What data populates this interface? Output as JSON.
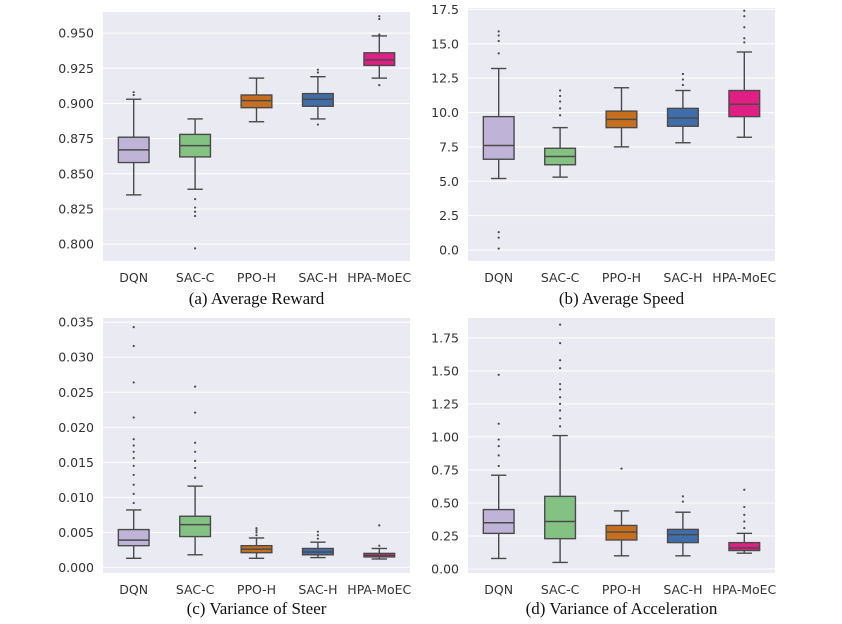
{
  "colors": {
    "background": "#eaeaf2",
    "grid": "#ffffff",
    "whisker": "#4a4a4a",
    "DQN": "#bfb3d8",
    "SAC-C": "#84c283",
    "PPO-H": "#c86f1e",
    "SAC-H": "#3f6eab",
    "HPA-MoEC": "#e11e84"
  },
  "chart_data": [
    {
      "type": "box",
      "title": "(a) Average Reward",
      "categories": [
        "DQN",
        "SAC-C",
        "PPO-H",
        "SAC-H",
        "HPA-MoEC"
      ],
      "ylim": [
        0.788,
        0.965
      ],
      "yticks": [
        0.8,
        0.825,
        0.85,
        0.875,
        0.9,
        0.925,
        0.95
      ],
      "ytick_labels": [
        "0.800",
        "0.825",
        "0.850",
        "0.875",
        "0.900",
        "0.925",
        "0.950"
      ],
      "boxes": [
        {
          "whislo": 0.835,
          "q1": 0.858,
          "med": 0.867,
          "q3": 0.876,
          "whishi": 0.903,
          "fliers": [
            0.906,
            0.908
          ]
        },
        {
          "whislo": 0.839,
          "q1": 0.862,
          "med": 0.87,
          "q3": 0.878,
          "whishi": 0.889,
          "fliers": [
            0.832,
            0.826,
            0.823,
            0.82,
            0.797
          ]
        },
        {
          "whislo": 0.887,
          "q1": 0.897,
          "med": 0.902,
          "q3": 0.906,
          "whishi": 0.918,
          "fliers": []
        },
        {
          "whislo": 0.889,
          "q1": 0.898,
          "med": 0.903,
          "q3": 0.907,
          "whishi": 0.919,
          "fliers": [
            0.885,
            0.922,
            0.924
          ]
        },
        {
          "whislo": 0.918,
          "q1": 0.927,
          "med": 0.931,
          "q3": 0.936,
          "whishi": 0.948,
          "fliers": [
            0.913,
            0.949,
            0.96,
            0.962
          ]
        }
      ]
    },
    {
      "type": "box",
      "title": "(b) Average Speed",
      "categories": [
        "DQN",
        "SAC-C",
        "PPO-H",
        "SAC-H",
        "HPA-MoEC"
      ],
      "ylim": [
        -0.8,
        17.6
      ],
      "yticks": [
        0,
        2.5,
        5,
        7.5,
        10,
        12.5,
        15,
        17.5
      ],
      "ytick_labels": [
        "0.0",
        "2.5",
        "5.0",
        "7.5",
        "10.0",
        "12.5",
        "15.0",
        "17.5"
      ],
      "boxes": [
        {
          "whislo": 5.2,
          "q1": 6.6,
          "med": 7.6,
          "q3": 9.7,
          "whishi": 13.2,
          "fliers": [
            0.1,
            0.9,
            1.3,
            14.3,
            15.2,
            15.6,
            15.9
          ]
        },
        {
          "whislo": 5.3,
          "q1": 6.2,
          "med": 6.8,
          "q3": 7.4,
          "whishi": 8.9,
          "fliers": [
            9.8,
            10.3,
            10.8,
            11.2,
            11.6
          ]
        },
        {
          "whislo": 7.5,
          "q1": 8.9,
          "med": 9.5,
          "q3": 10.1,
          "whishi": 11.8,
          "fliers": []
        },
        {
          "whislo": 7.8,
          "q1": 9.0,
          "med": 9.6,
          "q3": 10.3,
          "whishi": 11.6,
          "fliers": [
            12.0,
            12.4,
            12.8
          ]
        },
        {
          "whislo": 8.2,
          "q1": 9.7,
          "med": 10.6,
          "q3": 11.6,
          "whishi": 14.4,
          "fliers": [
            15.1,
            15.4,
            16.2,
            17.0,
            17.4
          ]
        }
      ]
    },
    {
      "type": "box",
      "title": "(c) Variance of Steer",
      "categories": [
        "DQN",
        "SAC-C",
        "PPO-H",
        "SAC-H",
        "HPA-MoEC"
      ],
      "ylim": [
        -0.0008,
        0.0356
      ],
      "yticks": [
        0,
        0.005,
        0.01,
        0.015,
        0.02,
        0.025,
        0.03,
        0.035
      ],
      "ytick_labels": [
        "0.000",
        "0.005",
        "0.010",
        "0.015",
        "0.020",
        "0.025",
        "0.030",
        "0.035"
      ],
      "boxes": [
        {
          "whislo": 0.0013,
          "q1": 0.0031,
          "med": 0.0039,
          "q3": 0.0054,
          "whishi": 0.0082,
          "fliers": [
            0.0092,
            0.0105,
            0.0118,
            0.0132,
            0.0145,
            0.0156,
            0.0165,
            0.0174,
            0.0183,
            0.0214,
            0.0264,
            0.0316,
            0.0343
          ]
        },
        {
          "whislo": 0.0018,
          "q1": 0.0044,
          "med": 0.0061,
          "q3": 0.0073,
          "whishi": 0.0116,
          "fliers": [
            0.0128,
            0.0142,
            0.0152,
            0.0165,
            0.0178,
            0.0221,
            0.0258
          ]
        },
        {
          "whislo": 0.0013,
          "q1": 0.0021,
          "med": 0.0026,
          "q3": 0.0031,
          "whishi": 0.0042,
          "fliers": [
            0.0046,
            0.005,
            0.0053,
            0.0056
          ]
        },
        {
          "whislo": 0.0014,
          "q1": 0.0018,
          "med": 0.0022,
          "q3": 0.0027,
          "whishi": 0.0036,
          "fliers": [
            0.0041,
            0.0046,
            0.0051
          ]
        },
        {
          "whislo": 0.0012,
          "q1": 0.0015,
          "med": 0.0017,
          "q3": 0.002,
          "whishi": 0.0027,
          "fliers": [
            0.0031,
            0.006
          ]
        }
      ]
    },
    {
      "type": "box",
      "title": "(d) Variance of Acceleration",
      "categories": [
        "DQN",
        "SAC-C",
        "PPO-H",
        "SAC-H",
        "HPA-MoEC"
      ],
      "ylim": [
        -0.03,
        1.9
      ],
      "yticks": [
        0,
        0.25,
        0.5,
        0.75,
        1.0,
        1.25,
        1.5,
        1.75
      ],
      "ytick_labels": [
        "0.00",
        "0.25",
        "0.50",
        "0.75",
        "1.00",
        "1.25",
        "1.50",
        "1.75"
      ],
      "boxes": [
        {
          "whislo": 0.08,
          "q1": 0.27,
          "med": 0.35,
          "q3": 0.45,
          "whishi": 0.71,
          "fliers": [
            0.78,
            0.86,
            0.93,
            0.98,
            1.1,
            1.47
          ]
        },
        {
          "whislo": 0.05,
          "q1": 0.23,
          "med": 0.36,
          "q3": 0.55,
          "whishi": 1.01,
          "fliers": [
            1.08,
            1.14,
            1.2,
            1.25,
            1.3,
            1.36,
            1.4,
            1.52,
            1.58,
            1.71,
            1.85
          ]
        },
        {
          "whislo": 0.1,
          "q1": 0.22,
          "med": 0.28,
          "q3": 0.33,
          "whishi": 0.44,
          "fliers": [
            0.76
          ]
        },
        {
          "whislo": 0.1,
          "q1": 0.2,
          "med": 0.26,
          "q3": 0.3,
          "whishi": 0.43,
          "fliers": [
            0.51,
            0.55
          ]
        },
        {
          "whislo": 0.12,
          "q1": 0.14,
          "med": 0.16,
          "q3": 0.2,
          "whishi": 0.27,
          "fliers": [
            0.31,
            0.36,
            0.41,
            0.47,
            0.6
          ]
        }
      ]
    }
  ]
}
